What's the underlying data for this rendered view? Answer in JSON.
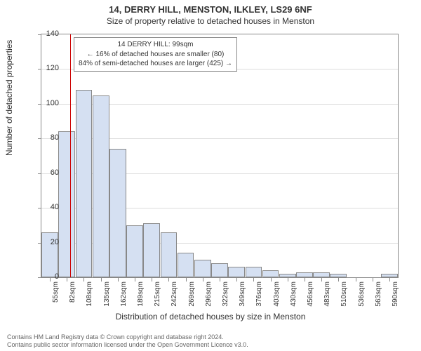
{
  "header": {
    "title_main": "14, DERRY HILL, MENSTON, ILKLEY, LS29 6NF",
    "title_sub": "Size of property relative to detached houses in Menston"
  },
  "chart": {
    "type": "histogram",
    "ylabel": "Number of detached properties",
    "xlabel": "Distribution of detached houses by size in Menston",
    "ylim": [
      0,
      140
    ],
    "ytick_step": 20,
    "yticks": [
      0,
      20,
      40,
      60,
      80,
      100,
      120,
      140
    ],
    "plot_bg": "#ffffff",
    "grid_color": "#dddddd",
    "axis_color": "#888888",
    "bar_fill": "#d5e0f2",
    "bar_stroke": "#888888",
    "marker_color": "#cc0000",
    "text_color": "#333333",
    "footer_color": "#666666",
    "label_fontsize": 12,
    "tick_fontsize": 10,
    "categories": [
      "55sqm",
      "82sqm",
      "108sqm",
      "135sqm",
      "162sqm",
      "189sqm",
      "215sqm",
      "242sqm",
      "269sqm",
      "296sqm",
      "322sqm",
      "349sqm",
      "376sqm",
      "403sqm",
      "430sqm",
      "456sqm",
      "483sqm",
      "510sqm",
      "536sqm",
      "563sqm",
      "590sqm"
    ],
    "values": [
      26,
      84,
      108,
      105,
      74,
      30,
      31,
      26,
      14,
      10,
      8,
      6,
      6,
      4,
      2,
      3,
      3,
      2,
      0,
      0,
      2
    ],
    "marker_x": 99,
    "marker_x_range": [
      55,
      603
    ],
    "annotation": {
      "line1": "14 DERRY HILL: 99sqm",
      "line2": "← 16% of detached houses are smaller (80)",
      "line3": "84% of semi-detached houses are larger (425) →"
    }
  },
  "footer": {
    "line1": "Contains HM Land Registry data © Crown copyright and database right 2024.",
    "line2": "Contains public sector information licensed under the Open Government Licence v3.0."
  }
}
